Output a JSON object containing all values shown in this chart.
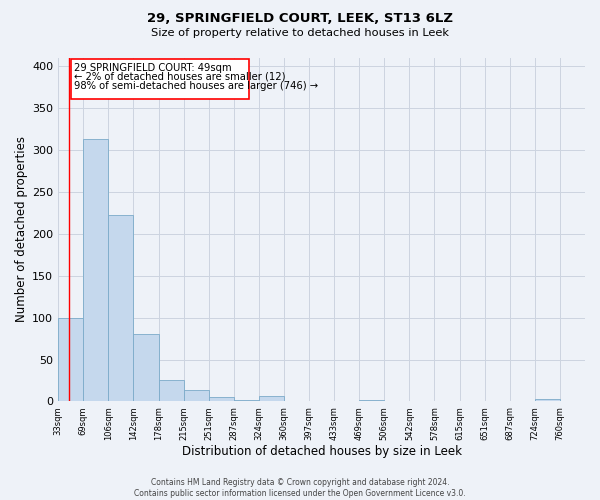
{
  "title": "29, SPRINGFIELD COURT, LEEK, ST13 6LZ",
  "subtitle": "Size of property relative to detached houses in Leek",
  "xlabel": "Distribution of detached houses by size in Leek",
  "ylabel": "Number of detached properties",
  "bin_labels": [
    "33sqm",
    "69sqm",
    "106sqm",
    "142sqm",
    "178sqm",
    "215sqm",
    "251sqm",
    "287sqm",
    "324sqm",
    "360sqm",
    "397sqm",
    "433sqm",
    "469sqm",
    "506sqm",
    "542sqm",
    "578sqm",
    "615sqm",
    "651sqm",
    "687sqm",
    "724sqm",
    "760sqm"
  ],
  "bar_values": [
    100,
    313,
    222,
    81,
    26,
    14,
    5,
    2,
    6,
    0,
    0,
    0,
    2,
    0,
    0,
    0,
    0,
    0,
    0,
    3,
    0
  ],
  "bar_color": "#c5d8ed",
  "bar_edge_color": "#7baac9",
  "annotation_lines": [
    "29 SPRINGFIELD COURT: 49sqm",
    "← 2% of detached houses are smaller (12)",
    "98% of semi-detached houses are larger (746) →"
  ],
  "ylim": [
    0,
    410
  ],
  "yticks": [
    0,
    50,
    100,
    150,
    200,
    250,
    300,
    350,
    400
  ],
  "footer_text": "Contains HM Land Registry data © Crown copyright and database right 2024.\nContains public sector information licensed under the Open Government Licence v3.0.",
  "bg_color": "#eef2f8",
  "grid_color": "#ccd4e0"
}
